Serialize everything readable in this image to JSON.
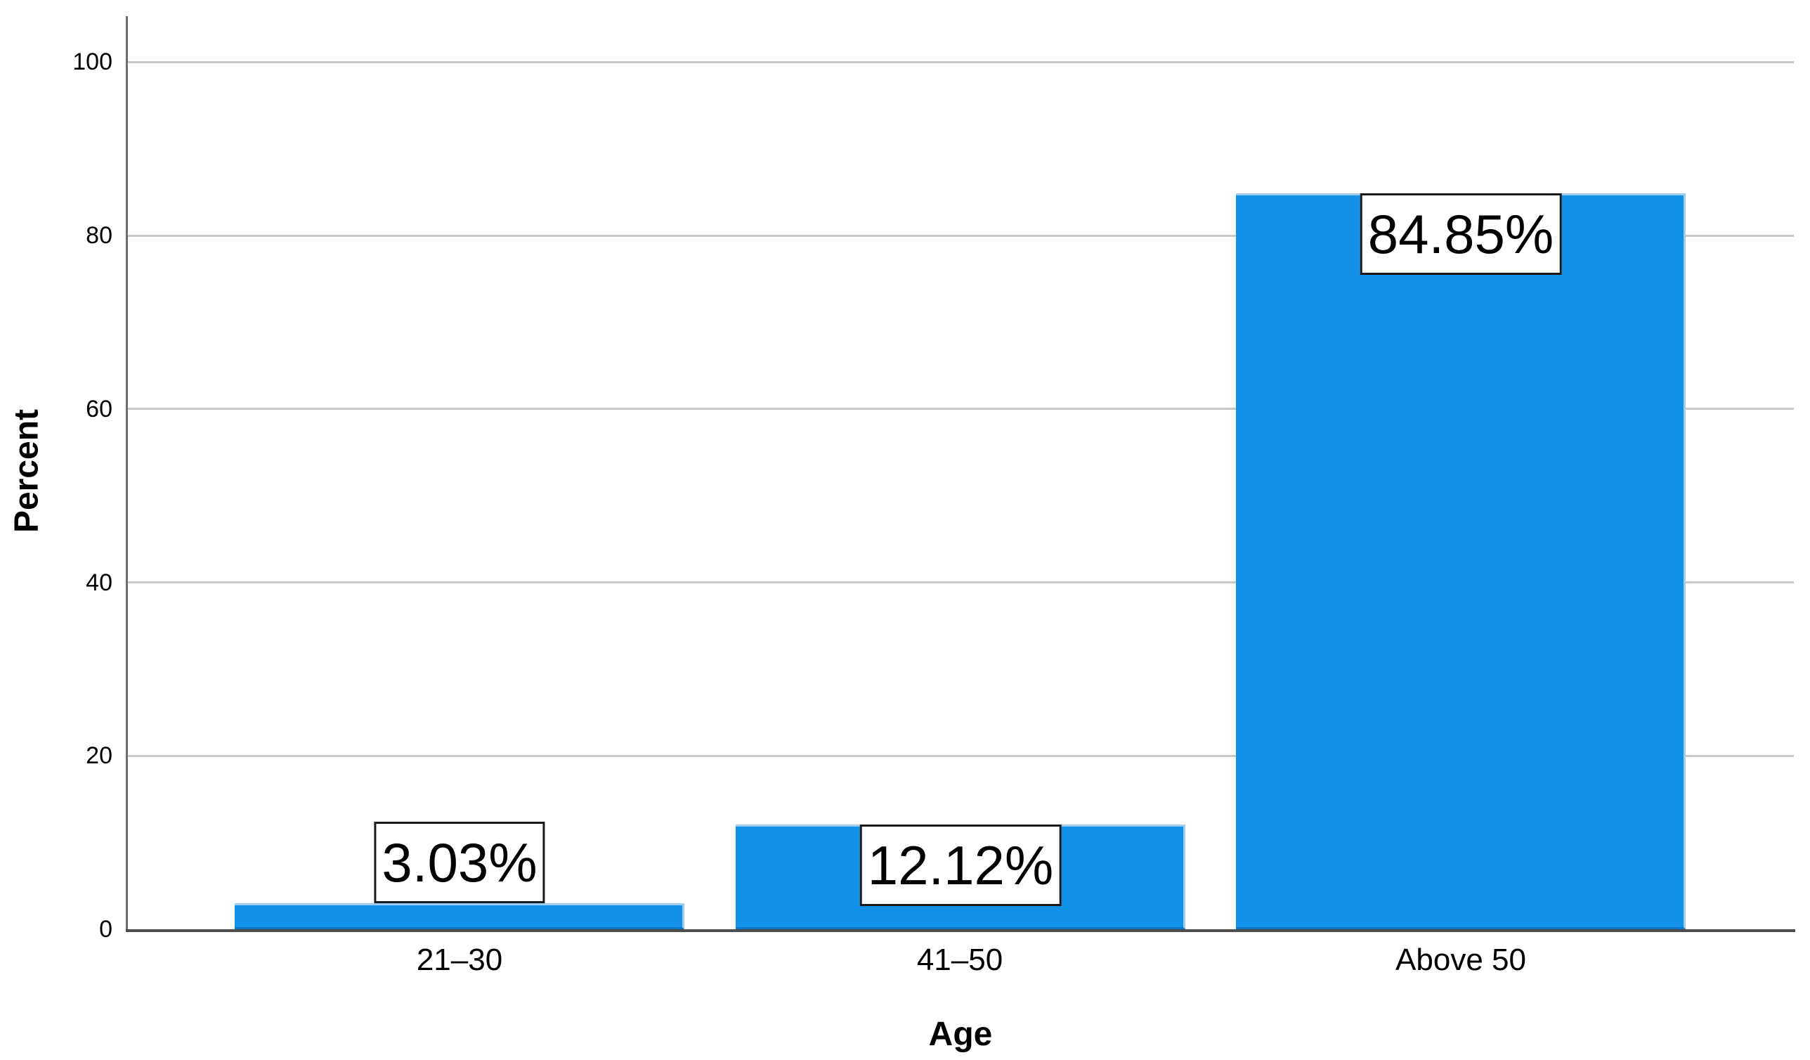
{
  "chart_data": {
    "type": "bar",
    "title": "",
    "categories": [
      "21–30",
      "41–50",
      "Above 50"
    ],
    "values": [
      3.03,
      12.12,
      84.85
    ],
    "bar_labels": [
      "3.03%",
      "12.12%",
      "84.85%"
    ],
    "xlabel": "Age",
    "ylabel": "Percent",
    "ylim": [
      0,
      100
    ],
    "y_ticks": [
      0,
      20,
      40,
      60,
      80,
      100
    ],
    "grid": "horizontal gridlines at 20/40/60/80/100, no legend",
    "legend_position": "none",
    "colors": {
      "bar_fill": "#1390e8",
      "bar_light_edge": "#9ccdf2",
      "bar_dark_edge": "#0d78c8",
      "gridline": "#c9c9c9",
      "y_axis_line": "#6e6e6e",
      "x_axis_line": "#4d4d4d",
      "label_box_bg": "#ffffff",
      "label_box_border": "#1a1a1a",
      "text": "#000000",
      "background": "#ffffff"
    }
  }
}
